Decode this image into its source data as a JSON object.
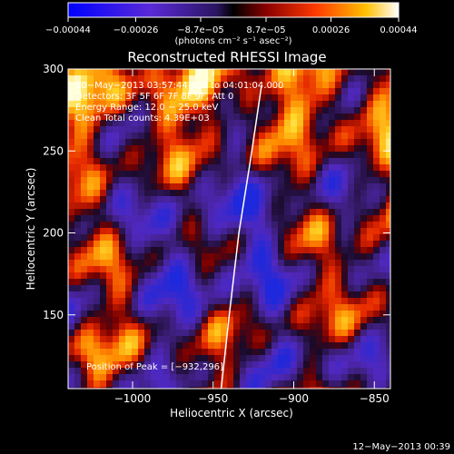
{
  "chart_data": {
    "type": "heatmap",
    "title": "Reconstructed RHESSI Image",
    "xlabel": "Heliocentric X (arcsec)",
    "ylabel": "Heliocentric Y (arcsec)",
    "xlim": [
      -1040,
      -840
    ],
    "ylim": [
      105,
      300
    ],
    "x_ticks": [
      -1000,
      -950,
      -900,
      -850
    ],
    "x_tick_labels": [
      "−1000",
      "−950",
      "−900",
      "−850"
    ],
    "y_ticks": [
      150,
      200,
      250,
      300
    ],
    "y_tick_labels": [
      "150",
      "200",
      "250",
      "300"
    ],
    "colorbar": {
      "ticks": [
        -0.00044,
        -0.00026,
        -8.7e-05,
        8.7e-05,
        0.00026,
        0.00044
      ],
      "tick_labels": [
        "−0.00044",
        "−0.00026",
        "−8.7e−05",
        "8.7e−05",
        "0.00026",
        "0.00044"
      ],
      "unit_label": "(photons cm⁻² s⁻¹ asec⁻²)",
      "range": [
        -0.00044,
        0.00044
      ]
    },
    "annotations": [
      "10−May−2013 03:57:44.000 to 04:01:04.000",
      "Detectors: 3F 5F 6F 7F 8F 9F, Att 0",
      "Energy Range: 12.0 − 25.0 keV",
      "Clean    Total counts: 4.39E+03"
    ],
    "peak_label": "Position of Peak = [−932,296]",
    "peak_position": [
      -932,
      296
    ],
    "limb_curve": [
      [
        -945,
        105
      ],
      [
        -940,
        150
      ],
      [
        -934,
        200
      ],
      [
        -926,
        250
      ],
      [
        -920,
        290
      ]
    ],
    "grid": false
  },
  "footer": {
    "timestamp": "12−May−2013 00:39"
  }
}
